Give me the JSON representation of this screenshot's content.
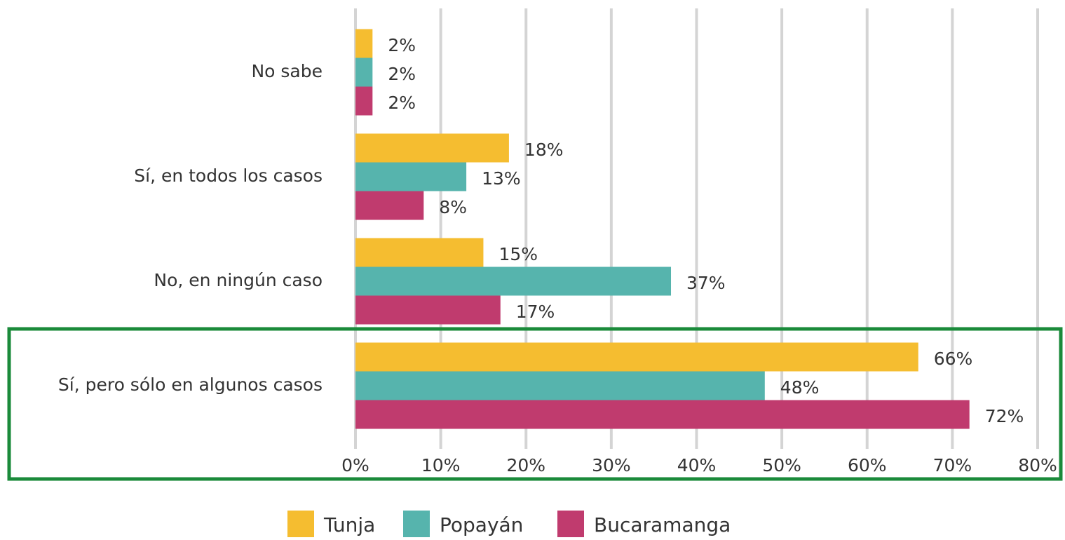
{
  "chart_data": {
    "type": "bar",
    "orientation": "horizontal",
    "categories": [
      "No sabe",
      "Sí, en todos los casos",
      "No, en ningún caso",
      "Sí, pero sólo en algunos casos"
    ],
    "series": [
      {
        "name": "Tunja",
        "color": "#f5bd30",
        "values": [
          2,
          18,
          15,
          66
        ],
        "value_labels": [
          "2%",
          "18%",
          "15%",
          "66%"
        ]
      },
      {
        "name": "Popayán",
        "color": "#56b4ad",
        "values": [
          2,
          13,
          37,
          48
        ],
        "value_labels": [
          "2%",
          "13%",
          "37%",
          "48%"
        ]
      },
      {
        "name": "Bucaramanga",
        "color": "#c03b6e",
        "values": [
          2,
          8,
          17,
          72
        ],
        "value_labels": [
          "2%",
          "8%",
          "17%",
          "72%"
        ]
      }
    ],
    "xlim": [
      0,
      80
    ],
    "xticks": [
      {
        "value": 0,
        "label": "0%"
      },
      {
        "value": 10,
        "label": "10%"
      },
      {
        "value": 20,
        "label": "20%"
      },
      {
        "value": 30,
        "label": "30%"
      },
      {
        "value": 40,
        "label": "40%"
      },
      {
        "value": 50,
        "label": "50%"
      },
      {
        "value": 60,
        "label": "60%"
      },
      {
        "value": 70,
        "label": "70%"
      },
      {
        "value": 80,
        "label": "80%"
      }
    ],
    "grid": true,
    "legend": "bottom"
  }
}
